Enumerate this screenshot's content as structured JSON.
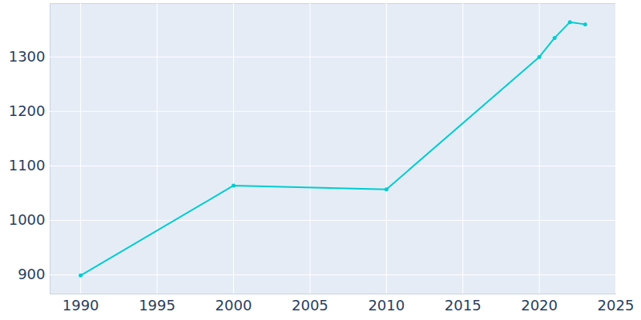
{
  "chart_data": {
    "type": "line",
    "x": [
      1990,
      2000,
      2010,
      2020,
      2021,
      2022,
      2023
    ],
    "values": [
      899,
      1064,
      1057,
      1300,
      1335,
      1364,
      1360
    ],
    "color": "#00cdd0",
    "marker": "circle",
    "xlim": [
      1988,
      2025
    ],
    "xticks": [
      1990,
      1995,
      2000,
      2005,
      2010,
      2015,
      2020,
      2025
    ],
    "ylim": [
      865,
      1398
    ],
    "yticks": [
      900,
      1000,
      1100,
      1200,
      1300
    ],
    "grid": true
  }
}
